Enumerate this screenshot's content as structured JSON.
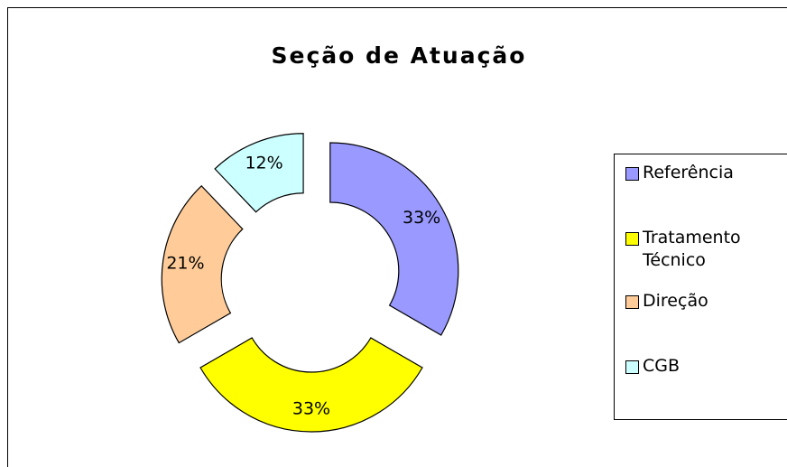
{
  "chart_data": {
    "type": "donut",
    "title": "Seção de Atuação",
    "categories": [
      "Referência",
      "Tratamento Técnico",
      "Direção",
      "CGB"
    ],
    "values": [
      33,
      33,
      21,
      12
    ],
    "value_labels": [
      "33%",
      "33%",
      "21%",
      "12%"
    ],
    "colors": [
      "#9999ff",
      "#ffff00",
      "#ffcc99",
      "#ccffff"
    ],
    "legend": "right"
  }
}
